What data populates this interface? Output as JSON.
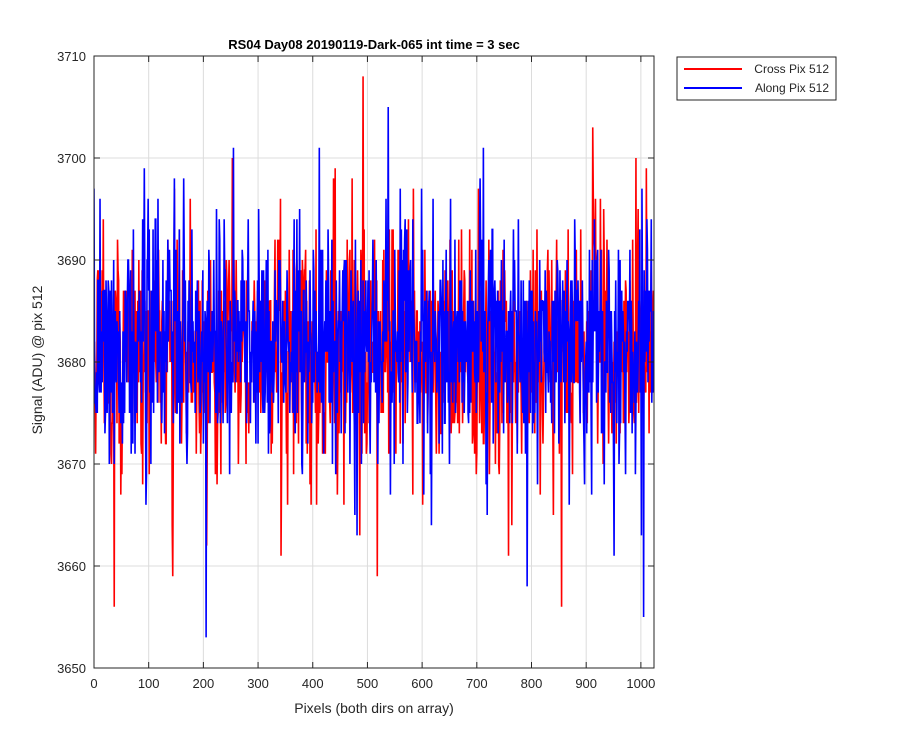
{
  "chart_data": {
    "type": "line",
    "title": "RS04 Day08 20190119-Dark-065 int time = 3 sec",
    "xlabel": "Pixels (both dirs on array)",
    "ylabel": "Signal (ADU) @ pix 512",
    "xlim": [
      0,
      1024
    ],
    "ylim": [
      3650,
      3710
    ],
    "xticks": [
      "0",
      "100",
      "200",
      "300",
      "400",
      "500",
      "600",
      "700",
      "800",
      "900",
      "1000"
    ],
    "yticks": [
      "3650",
      "3660",
      "3670",
      "3680",
      "3690",
      "3700",
      "3710"
    ],
    "grid": true,
    "legend_position": "outside top-right",
    "series": [
      {
        "name": "Cross Pix 512",
        "color": "#ff0000",
        "mean": 3681,
        "noise_sd": 6,
        "n_points": 1024,
        "min": 3656,
        "max": 3708,
        "notable_points": [
          [
            37,
            3656
          ],
          [
            144,
            3659
          ],
          [
            206,
            3662
          ],
          [
            253,
            3700
          ],
          [
            492,
            3708
          ],
          [
            855,
            3656
          ],
          [
            912,
            3703
          ],
          [
            1010,
            3699
          ]
        ]
      },
      {
        "name": "Along Pix 512",
        "color": "#0000ff",
        "mean": 3682,
        "noise_sd": 6,
        "n_points": 1024,
        "min": 3653,
        "max": 3705,
        "notable_points": [
          [
            0,
            3697
          ],
          [
            92,
            3699
          ],
          [
            205,
            3653
          ],
          [
            412,
            3701
          ],
          [
            538,
            3705
          ],
          [
            712,
            3701
          ],
          [
            792,
            3658
          ],
          [
            1005,
            3655
          ]
        ]
      }
    ]
  }
}
